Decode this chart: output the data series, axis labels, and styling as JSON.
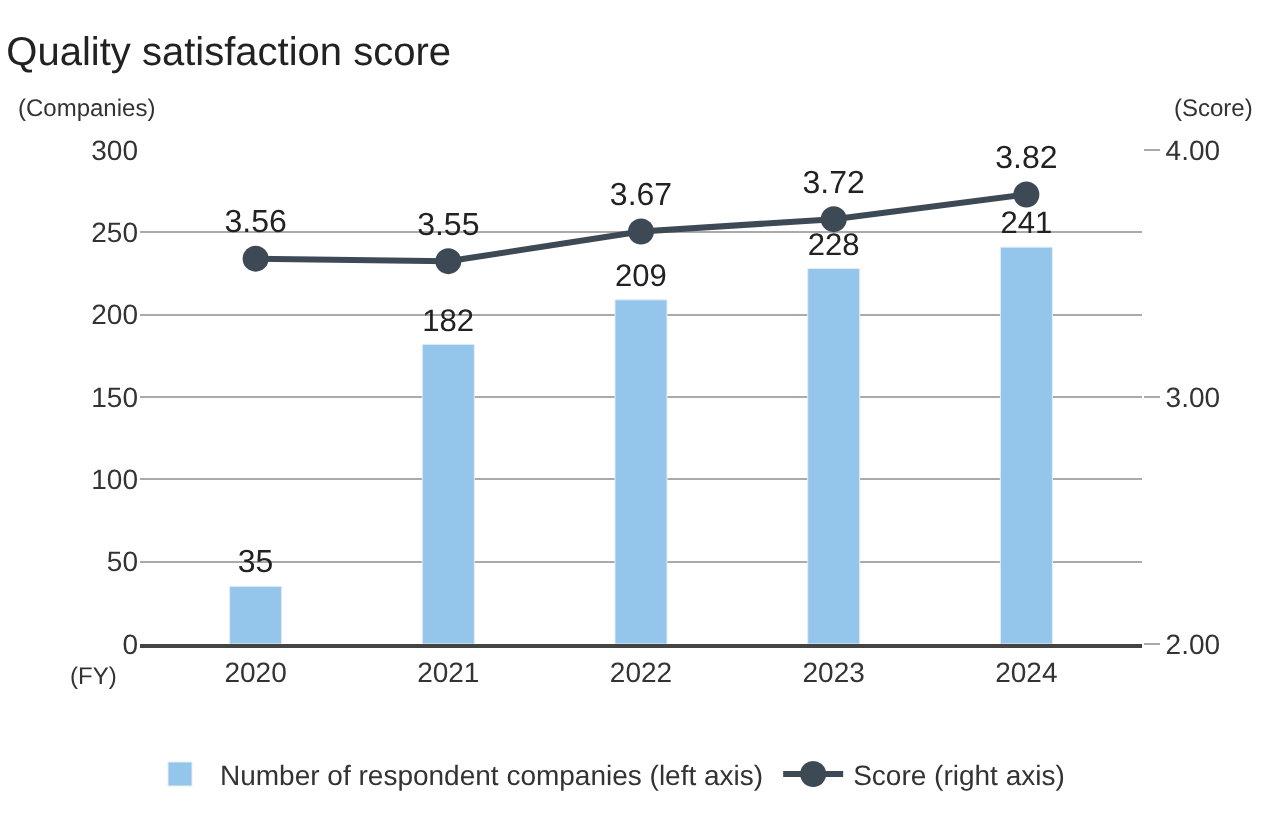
{
  "chart_data": {
    "type": "bar",
    "title": "Quality satisfaction score",
    "xlabel": "(FY)",
    "ylabel": "(Companies)",
    "y2label": "(Score)",
    "categories": [
      "2020",
      "2021",
      "2022",
      "2023",
      "2024"
    ],
    "series": [
      {
        "name": "Number of respondent companies (left axis)",
        "color": "#93c6ea",
        "values": [
          35,
          182,
          209,
          228,
          241
        ]
      },
      {
        "name": "Score (right axis)",
        "type": "line",
        "axis": "y2",
        "color": "#3d4a55",
        "marker": "circle",
        "line_style": "solid",
        "values": [
          3.56,
          3.55,
          3.67,
          3.72,
          3.82
        ]
      }
    ],
    "ylim": [
      0,
      300
    ],
    "yticks": [
      0,
      50,
      100,
      150,
      200,
      250,
      300
    ],
    "y2lim": [
      2,
      4
    ],
    "y2ticks": [
      {
        "value": 2,
        "label": "2.00"
      },
      {
        "value": 3,
        "label": "3.00"
      },
      {
        "value": 4,
        "label": "4.00"
      }
    ],
    "data_labels": true,
    "grid": "y",
    "legend": "bottom"
  }
}
